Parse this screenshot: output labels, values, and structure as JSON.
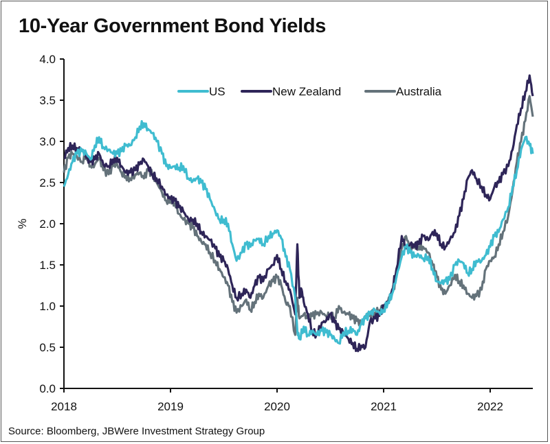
{
  "chart_data": {
    "type": "line",
    "title": "10-Year Government Bond Yields",
    "xlabel": "",
    "ylabel": "%",
    "xlim": [
      2018.0,
      2022.42
    ],
    "ylim": [
      0.0,
      4.0
    ],
    "yticks": [
      "0.0",
      "0.5",
      "1.0",
      "1.5",
      "2.0",
      "2.5",
      "3.0",
      "3.5",
      "4.0"
    ],
    "ytick_values": [
      0.0,
      0.5,
      1.0,
      1.5,
      2.0,
      2.5,
      3.0,
      3.5,
      4.0
    ],
    "xticks": [
      "2018",
      "2019",
      "2020",
      "2021",
      "2022"
    ],
    "xtick_values": [
      2018,
      2019,
      2020,
      2021,
      2022
    ],
    "grid": false,
    "legend_position": "top-center",
    "source": "Source: Bloomberg, JBWere Investment Strategy Group",
    "series": [
      {
        "name": "US",
        "color": "#3fbcd0",
        "x": [
          2018.0,
          2018.04,
          2018.08,
          2018.12,
          2018.17,
          2018.21,
          2018.25,
          2018.29,
          2018.33,
          2018.37,
          2018.42,
          2018.46,
          2018.5,
          2018.54,
          2018.58,
          2018.62,
          2018.67,
          2018.71,
          2018.75,
          2018.79,
          2018.83,
          2018.87,
          2018.92,
          2018.96,
          2019.0,
          2019.04,
          2019.08,
          2019.12,
          2019.17,
          2019.21,
          2019.25,
          2019.29,
          2019.33,
          2019.37,
          2019.42,
          2019.46,
          2019.5,
          2019.54,
          2019.58,
          2019.62,
          2019.67,
          2019.71,
          2019.75,
          2019.79,
          2019.83,
          2019.87,
          2019.92,
          2019.96,
          2020.0,
          2020.04,
          2020.08,
          2020.12,
          2020.17,
          2020.19,
          2020.21,
          2020.25,
          2020.29,
          2020.33,
          2020.37,
          2020.42,
          2020.46,
          2020.5,
          2020.54,
          2020.58,
          2020.62,
          2020.67,
          2020.71,
          2020.75,
          2020.79,
          2020.83,
          2020.87,
          2020.92,
          2020.96,
          2021.0,
          2021.04,
          2021.08,
          2021.12,
          2021.17,
          2021.21,
          2021.25,
          2021.29,
          2021.33,
          2021.37,
          2021.42,
          2021.46,
          2021.5,
          2021.54,
          2021.58,
          2021.62,
          2021.67,
          2021.71,
          2021.75,
          2021.79,
          2021.83,
          2021.87,
          2021.92,
          2021.96,
          2022.0,
          2022.04,
          2022.08,
          2022.12,
          2022.17,
          2022.21,
          2022.25,
          2022.29,
          2022.33,
          2022.37,
          2022.4
        ],
        "values": [
          2.45,
          2.6,
          2.75,
          2.85,
          2.88,
          2.85,
          2.78,
          2.95,
          3.05,
          2.93,
          2.9,
          2.85,
          2.85,
          2.88,
          2.95,
          2.95,
          3.05,
          3.18,
          3.22,
          3.15,
          3.1,
          3.0,
          2.85,
          2.7,
          2.68,
          2.7,
          2.68,
          2.7,
          2.55,
          2.52,
          2.55,
          2.5,
          2.42,
          2.3,
          2.15,
          2.05,
          2.05,
          2.0,
          1.75,
          1.55,
          1.65,
          1.75,
          1.72,
          1.8,
          1.82,
          1.75,
          1.85,
          1.88,
          1.92,
          1.82,
          1.6,
          1.45,
          1.1,
          0.7,
          0.6,
          0.75,
          0.65,
          0.7,
          0.65,
          0.7,
          0.68,
          0.65,
          0.6,
          0.55,
          0.68,
          0.7,
          0.72,
          0.65,
          0.78,
          0.85,
          0.9,
          0.95,
          0.92,
          0.95,
          1.05,
          1.15,
          1.35,
          1.6,
          1.72,
          1.65,
          1.6,
          1.62,
          1.58,
          1.6,
          1.45,
          1.3,
          1.28,
          1.3,
          1.32,
          1.5,
          1.55,
          1.52,
          1.4,
          1.45,
          1.55,
          1.55,
          1.62,
          1.72,
          1.85,
          1.9,
          2.05,
          2.2,
          2.45,
          2.65,
          2.9,
          3.05,
          2.95,
          2.85
        ]
      },
      {
        "name": "New Zealand",
        "color": "#2e2558",
        "x": [
          2018.0,
          2018.04,
          2018.08,
          2018.12,
          2018.17,
          2018.21,
          2018.25,
          2018.29,
          2018.33,
          2018.37,
          2018.42,
          2018.46,
          2018.5,
          2018.54,
          2018.58,
          2018.62,
          2018.67,
          2018.71,
          2018.75,
          2018.79,
          2018.83,
          2018.87,
          2018.92,
          2018.96,
          2019.0,
          2019.04,
          2019.08,
          2019.12,
          2019.17,
          2019.21,
          2019.25,
          2019.29,
          2019.33,
          2019.37,
          2019.42,
          2019.46,
          2019.5,
          2019.54,
          2019.58,
          2019.62,
          2019.67,
          2019.71,
          2019.75,
          2019.79,
          2019.83,
          2019.87,
          2019.92,
          2019.96,
          2020.0,
          2020.04,
          2020.08,
          2020.12,
          2020.17,
          2020.19,
          2020.21,
          2020.23,
          2020.25,
          2020.29,
          2020.33,
          2020.37,
          2020.42,
          2020.46,
          2020.5,
          2020.54,
          2020.58,
          2020.62,
          2020.67,
          2020.71,
          2020.75,
          2020.79,
          2020.83,
          2020.87,
          2020.92,
          2020.96,
          2021.0,
          2021.04,
          2021.08,
          2021.12,
          2021.17,
          2021.21,
          2021.25,
          2021.29,
          2021.33,
          2021.37,
          2021.42,
          2021.46,
          2021.5,
          2021.54,
          2021.58,
          2021.62,
          2021.67,
          2021.71,
          2021.75,
          2021.79,
          2021.83,
          2021.87,
          2021.92,
          2021.96,
          2022.0,
          2022.04,
          2022.08,
          2022.12,
          2022.17,
          2022.21,
          2022.25,
          2022.29,
          2022.33,
          2022.37,
          2022.4
        ],
        "values": [
          2.8,
          2.92,
          2.95,
          2.92,
          2.9,
          2.8,
          2.75,
          2.78,
          2.85,
          2.72,
          2.7,
          2.78,
          2.8,
          2.7,
          2.62,
          2.62,
          2.65,
          2.72,
          2.78,
          2.7,
          2.6,
          2.55,
          2.45,
          2.35,
          2.3,
          2.28,
          2.2,
          2.15,
          2.05,
          2.05,
          2.0,
          1.9,
          1.85,
          1.8,
          1.7,
          1.6,
          1.55,
          1.45,
          1.25,
          1.1,
          1.15,
          1.2,
          1.1,
          1.25,
          1.35,
          1.3,
          1.45,
          1.5,
          1.62,
          1.45,
          1.3,
          1.2,
          0.9,
          1.75,
          1.1,
          1.2,
          1.05,
          0.9,
          0.7,
          0.65,
          0.8,
          0.82,
          0.9,
          0.8,
          0.72,
          0.68,
          0.6,
          0.55,
          0.48,
          0.52,
          0.5,
          0.8,
          0.85,
          0.88,
          1.0,
          1.05,
          1.2,
          1.45,
          1.85,
          1.7,
          1.75,
          1.72,
          1.75,
          1.85,
          1.8,
          1.9,
          1.88,
          1.75,
          1.72,
          1.8,
          1.9,
          2.1,
          2.3,
          2.55,
          2.65,
          2.55,
          2.45,
          2.35,
          2.3,
          2.45,
          2.5,
          2.6,
          2.7,
          2.9,
          3.2,
          3.4,
          3.6,
          3.8,
          3.55
        ]
      },
      {
        "name": "Australia",
        "color": "#64727a",
        "x": [
          2018.0,
          2018.04,
          2018.08,
          2018.12,
          2018.17,
          2018.21,
          2018.25,
          2018.29,
          2018.33,
          2018.37,
          2018.42,
          2018.46,
          2018.5,
          2018.54,
          2018.58,
          2018.62,
          2018.67,
          2018.71,
          2018.75,
          2018.79,
          2018.83,
          2018.87,
          2018.92,
          2018.96,
          2019.0,
          2019.04,
          2019.08,
          2019.12,
          2019.17,
          2019.21,
          2019.25,
          2019.29,
          2019.33,
          2019.37,
          2019.42,
          2019.46,
          2019.5,
          2019.54,
          2019.58,
          2019.62,
          2019.67,
          2019.71,
          2019.75,
          2019.79,
          2019.83,
          2019.87,
          2019.92,
          2019.96,
          2020.0,
          2020.04,
          2020.08,
          2020.12,
          2020.17,
          2020.19,
          2020.21,
          2020.25,
          2020.29,
          2020.33,
          2020.37,
          2020.42,
          2020.46,
          2020.5,
          2020.54,
          2020.58,
          2020.62,
          2020.67,
          2020.71,
          2020.75,
          2020.79,
          2020.83,
          2020.87,
          2020.92,
          2020.96,
          2021.0,
          2021.04,
          2021.08,
          2021.12,
          2021.17,
          2021.21,
          2021.25,
          2021.29,
          2021.33,
          2021.37,
          2021.42,
          2021.46,
          2021.5,
          2021.54,
          2021.58,
          2021.62,
          2021.67,
          2021.71,
          2021.75,
          2021.79,
          2021.83,
          2021.87,
          2021.92,
          2021.96,
          2022.0,
          2022.04,
          2022.08,
          2022.12,
          2022.17,
          2022.21,
          2022.25,
          2022.29,
          2022.33,
          2022.37,
          2022.4
        ],
        "values": [
          2.62,
          2.8,
          2.85,
          2.82,
          2.75,
          2.85,
          2.7,
          2.72,
          2.8,
          2.65,
          2.6,
          2.7,
          2.72,
          2.62,
          2.58,
          2.55,
          2.6,
          2.62,
          2.55,
          2.65,
          2.6,
          2.5,
          2.38,
          2.28,
          2.3,
          2.25,
          2.12,
          2.05,
          2.0,
          1.95,
          1.85,
          1.78,
          1.75,
          1.65,
          1.55,
          1.45,
          1.35,
          1.25,
          1.05,
          0.92,
          1.0,
          1.08,
          0.95,
          1.05,
          1.15,
          1.1,
          1.25,
          1.3,
          1.35,
          1.25,
          1.05,
          1.0,
          0.65,
          1.1,
          0.85,
          0.9,
          0.85,
          0.88,
          0.9,
          0.92,
          0.88,
          0.9,
          0.85,
          1.0,
          0.92,
          0.9,
          0.85,
          0.82,
          0.78,
          0.88,
          0.9,
          0.92,
          0.95,
          1.0,
          1.05,
          1.15,
          1.35,
          1.7,
          1.85,
          1.7,
          1.75,
          1.72,
          1.72,
          1.65,
          1.5,
          1.35,
          1.2,
          1.15,
          1.25,
          1.38,
          1.3,
          1.25,
          1.15,
          1.1,
          1.12,
          1.2,
          1.45,
          1.55,
          1.6,
          1.75,
          1.9,
          2.1,
          2.4,
          2.75,
          3.0,
          3.25,
          3.55,
          3.3
        ]
      }
    ]
  }
}
